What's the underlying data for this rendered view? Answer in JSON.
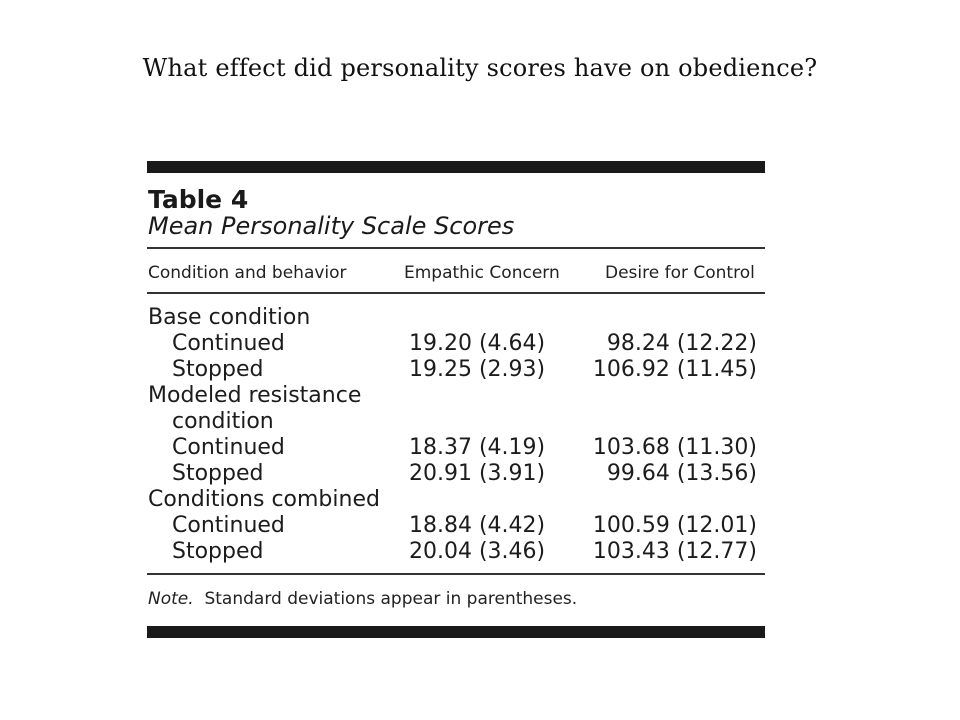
{
  "slide": {
    "title": "What effect did personality scores have on obedience?"
  },
  "table": {
    "label": "Table 4",
    "caption": "Mean Personality Scale Scores",
    "headers": [
      "Condition and behavior",
      "Empathic Concern",
      "Desire for Control"
    ],
    "rows": [
      {
        "label": "Base condition",
        "indent": false,
        "empathic": "",
        "desire": ""
      },
      {
        "label": "Continued",
        "indent": true,
        "empathic": "19.20 (4.64)",
        "desire": "98.24 (12.22)"
      },
      {
        "label": "Stopped",
        "indent": true,
        "empathic": "19.25 (2.93)",
        "desire": "106.92 (11.45)"
      },
      {
        "label": "Modeled resistance",
        "indent": false,
        "empathic": "",
        "desire": ""
      },
      {
        "label": "condition",
        "indent": true,
        "empathic": "",
        "desire": ""
      },
      {
        "label": "Continued",
        "indent": true,
        "empathic": "18.37 (4.19)",
        "desire": "103.68 (11.30)"
      },
      {
        "label": "Stopped",
        "indent": true,
        "empathic": "20.91 (3.91)",
        "desire": "99.64 (13.56)"
      },
      {
        "label": "Conditions combined",
        "indent": false,
        "empathic": "",
        "desire": ""
      },
      {
        "label": "Continued",
        "indent": true,
        "empathic": "18.84 (4.42)",
        "desire": "100.59 (12.01)"
      },
      {
        "label": "Stopped",
        "indent": true,
        "empathic": "20.04 (3.46)",
        "desire": "103.43 (12.77)"
      }
    ],
    "note_label": "Note.",
    "note_text": "Standard deviations appear in parentheses."
  }
}
